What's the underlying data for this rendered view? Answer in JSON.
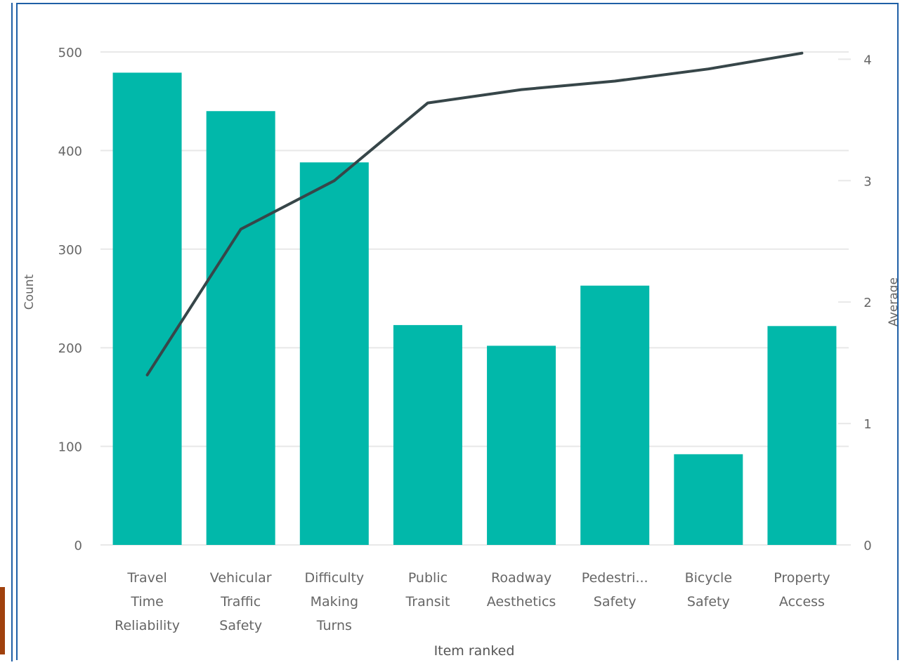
{
  "chart_data": {
    "type": "bar",
    "categories": [
      [
        "Travel",
        "Time",
        "Reliability"
      ],
      [
        "Vehicular",
        "Traffic",
        "Safety"
      ],
      [
        "Difficulty",
        "Making",
        "Turns"
      ],
      [
        "Public",
        "Transit"
      ],
      [
        "Roadway",
        "Aesthetics"
      ],
      [
        "Pedestri...",
        "Safety"
      ],
      [
        "Bicycle",
        "Safety"
      ],
      [
        "Property",
        "Access"
      ]
    ],
    "series": [
      {
        "values": [
          479,
          440,
          388,
          223,
          202,
          263,
          92,
          222
        ],
        "type": "bar",
        "axis": "left"
      },
      {
        "values": [
          1.4,
          2.6,
          3.0,
          3.64,
          3.75,
          3.82,
          3.92,
          4.05
        ],
        "type": "line",
        "axis": "right"
      }
    ],
    "xlabel": "Item ranked",
    "ylabel": "Count",
    "y2label": "Average",
    "ylim": [
      0,
      500
    ],
    "y2lim": [
      0,
      4.06
    ],
    "yticks": [
      "0",
      "100",
      "200",
      "300",
      "400",
      "500"
    ],
    "y2ticks": [
      "0",
      "1",
      "2",
      "3",
      "4"
    ],
    "grid": true,
    "colors": {
      "bar": "#01b8aa",
      "line": "#374649",
      "grid": "#e8e8e8",
      "tick_text": "#666666"
    }
  }
}
